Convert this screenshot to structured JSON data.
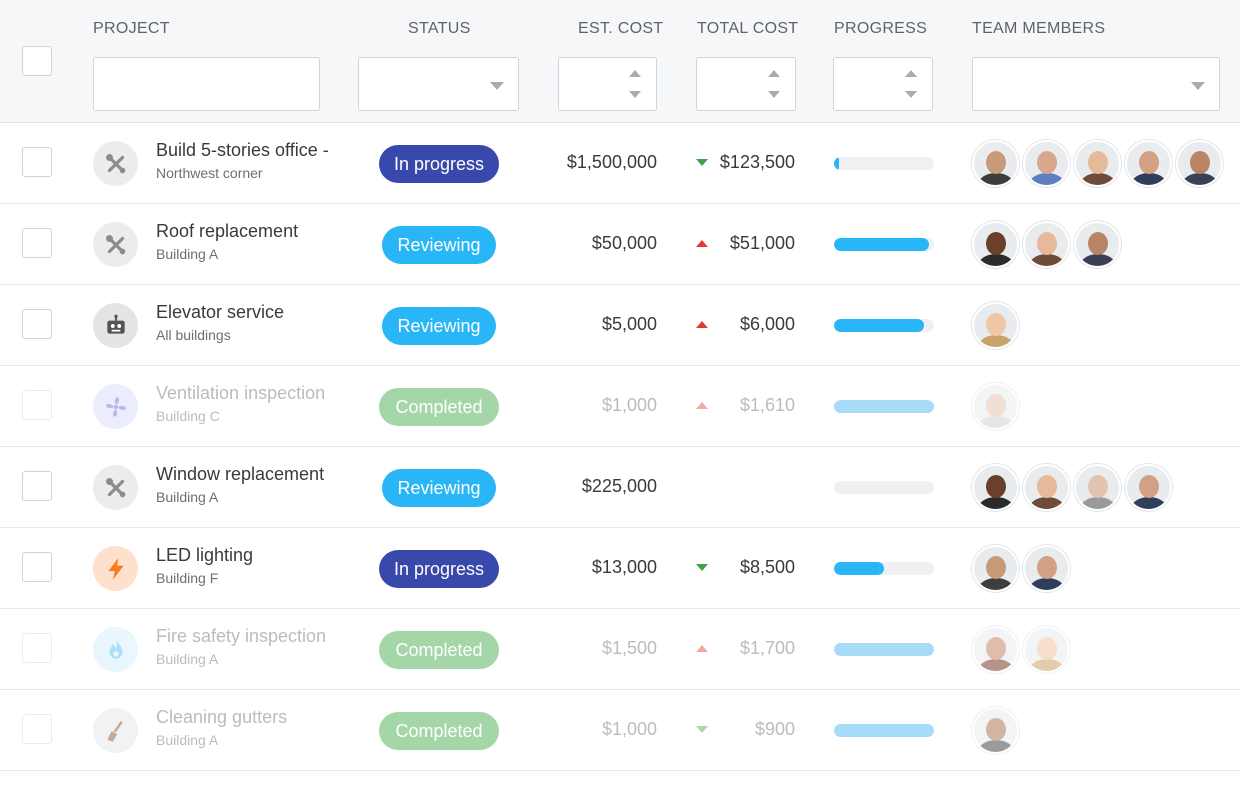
{
  "columns": {
    "project": "PROJECT",
    "status": "STATUS",
    "est_cost": "EST. COST",
    "total_cost": "TOTAL COST",
    "progress": "PROGRESS",
    "team_members": "TEAM MEMBERS"
  },
  "status_colors": {
    "In progress": "#3949ab",
    "Reviewing": "#29b6f6",
    "Completed": "#a5d6a7"
  },
  "rows": [
    {
      "name": "Build 5-stories office -",
      "sub": "Northwest corner",
      "icon": "tools-icon",
      "status": "In progress",
      "est": "$1,500,000",
      "total": "$123,500",
      "trend": "down",
      "progress": 0.05,
      "faded": false,
      "team": [
        {
          "skin": "#c99a7a",
          "shirt": "#3d3d3d"
        },
        {
          "skin": "#d7a88a",
          "shirt": "#5b7fc0"
        },
        {
          "skin": "#e6b99a",
          "shirt": "#6e4b3a"
        },
        {
          "skin": "#d2a184",
          "shirt": "#2f3e5c"
        },
        {
          "skin": "#b98566",
          "shirt": "#3b3f58"
        }
      ]
    },
    {
      "name": "Roof replacement",
      "sub": "Building A",
      "icon": "tools-icon",
      "status": "Reviewing",
      "est": "$50,000",
      "total": "$51,000",
      "trend": "up",
      "progress": 0.95,
      "faded": false,
      "team": [
        {
          "skin": "#6b3f2a",
          "shirt": "#2b2b2b"
        },
        {
          "skin": "#e6b99a",
          "shirt": "#6e4b3a"
        },
        {
          "skin": "#b98566",
          "shirt": "#3b3f58"
        }
      ]
    },
    {
      "name": "Elevator service",
      "sub": "All buildings",
      "icon": "robot-icon",
      "status": "Reviewing",
      "est": "$5,000",
      "total": "$6,000",
      "trend": "up",
      "progress": 0.9,
      "faded": false,
      "team": [
        {
          "skin": "#f0c7a6",
          "shirt": "#c9a36b"
        }
      ]
    },
    {
      "name": "Ventilation inspection",
      "sub": "Building C",
      "icon": "fan-icon",
      "status": "Completed",
      "est": "$1,000",
      "total": "$1,610",
      "trend": "up",
      "progress": 1.0,
      "faded": true,
      "team": [
        {
          "skin": "#e4c2b0",
          "shirt": "#d3d3d3"
        }
      ]
    },
    {
      "name": "Window replacement",
      "sub": "Building A",
      "icon": "tools-icon",
      "status": "Reviewing",
      "est": "$225,000",
      "total": "",
      "trend": "",
      "progress": 0.0,
      "faded": false,
      "team": [
        {
          "skin": "#6b3f2a",
          "shirt": "#2b2b2b"
        },
        {
          "skin": "#e6b99a",
          "shirt": "#6e4b3a"
        },
        {
          "skin": "#e4c2b0",
          "shirt": "#9a9a9a"
        },
        {
          "skin": "#d2a184",
          "shirt": "#2f3e5c"
        }
      ]
    },
    {
      "name": "LED lighting",
      "sub": "Building F",
      "icon": "bolt-icon",
      "status": "In progress",
      "est": "$13,000",
      "total": "$8,500",
      "trend": "down",
      "progress": 0.5,
      "faded": false,
      "team": [
        {
          "skin": "#c99a7a",
          "shirt": "#3d3d3d"
        },
        {
          "skin": "#d2a184",
          "shirt": "#2f3e5c"
        }
      ]
    },
    {
      "name": "Fire safety inspection",
      "sub": "Building A",
      "icon": "flame-icon",
      "status": "Completed",
      "est": "$1,500",
      "total": "$1,700",
      "trend": "up",
      "progress": 1.0,
      "faded": true,
      "team": [
        {
          "skin": "#c98a6a",
          "shirt": "#7a3b2e"
        },
        {
          "skin": "#f0c7a6",
          "shirt": "#c9a36b"
        }
      ]
    },
    {
      "name": "Cleaning gutters",
      "sub": "Building A",
      "icon": "broom-icon",
      "status": "Completed",
      "est": "$1,000",
      "total": "$900",
      "trend": "down",
      "progress": 1.0,
      "faded": true,
      "team": [
        {
          "skin": "#b07a5a",
          "shirt": "#4a4a4a"
        }
      ]
    }
  ]
}
